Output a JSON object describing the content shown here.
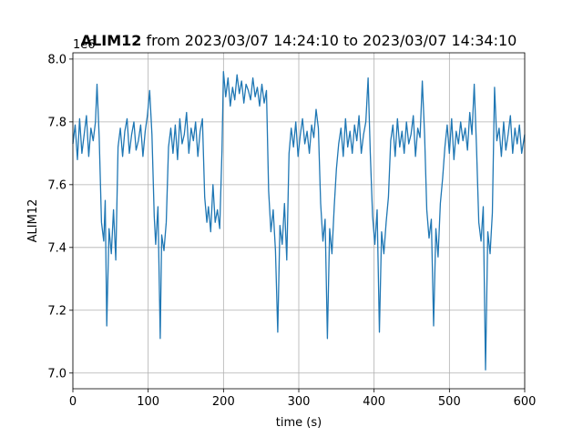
{
  "chart_data": {
    "type": "line",
    "title_bold": "ALIM12",
    "title_rest": " from 2023/03/07 14:24:10 to 2023/03/07 14:34:10",
    "xlabel": "time (s)",
    "ylabel": "ALIM12",
    "offset_label": "1e6",
    "xlim": [
      0,
      600
    ],
    "ylim": [
      6950000,
      8020000
    ],
    "xticks": [
      0,
      100,
      200,
      300,
      400,
      500,
      600
    ],
    "xtick_labels": [
      "0",
      "100",
      "200",
      "300",
      "400",
      "500",
      "600"
    ],
    "yticks": [
      7000000,
      7200000,
      7400000,
      7600000,
      7800000,
      8000000
    ],
    "ytick_labels": [
      "7.0",
      "7.2",
      "7.4",
      "7.6",
      "7.8",
      "8.0"
    ],
    "grid": true,
    "color": "#1f77b4",
    "series": [
      {
        "x": [
          0,
          3,
          6,
          9,
          12,
          15,
          18,
          21,
          24,
          27,
          30,
          32,
          35,
          38,
          41,
          43,
          45,
          48,
          51,
          54,
          57,
          60,
          63,
          66,
          69,
          72,
          75,
          78,
          81,
          84,
          87,
          90,
          93,
          96,
          99,
          102,
          105,
          108,
          110,
          113,
          116,
          118,
          121,
          124,
          127,
          130,
          133,
          136,
          139,
          142,
          145,
          148,
          151,
          154,
          157,
          160,
          163,
          166,
          169,
          172,
          175,
          178,
          180,
          183,
          186,
          189,
          192,
          195,
          198,
          200,
          203,
          206,
          209,
          212,
          215,
          218,
          221,
          224,
          227,
          230,
          233,
          236,
          239,
          242,
          245,
          248,
          251,
          254,
          257,
          260,
          263,
          266,
          269,
          272,
          275,
          278,
          281,
          284,
          287,
          290,
          293,
          296,
          299,
          302,
          305,
          308,
          311,
          314,
          317,
          320,
          323,
          326,
          329,
          332,
          335,
          338,
          341,
          344,
          347,
          350,
          353,
          356,
          359,
          362,
          365,
          368,
          371,
          374,
          377,
          380,
          383,
          386,
          389,
          392,
          395,
          398,
          401,
          404,
          407,
          410,
          413,
          416,
          419,
          422,
          425,
          428,
          431,
          434,
          437,
          440,
          443,
          446,
          449,
          452,
          455,
          458,
          461,
          464,
          467,
          470,
          473,
          476,
          479,
          482,
          485,
          488,
          491,
          494,
          497,
          500,
          503,
          506,
          509,
          512,
          515,
          518,
          521,
          524,
          527,
          530,
          533,
          536,
          539,
          542,
          545,
          548,
          551,
          554,
          557,
          560,
          563,
          566,
          569,
          572,
          575,
          578,
          581,
          584,
          587,
          590,
          593,
          596,
          600
        ],
        "y": [
          7730000,
          7790000,
          7680000,
          7810000,
          7700000,
          7760000,
          7820000,
          7690000,
          7780000,
          7740000,
          7800000,
          7920000,
          7750000,
          7480000,
          7420000,
          7550000,
          7150000,
          7460000,
          7380000,
          7520000,
          7360000,
          7720000,
          7780000,
          7690000,
          7770000,
          7810000,
          7700000,
          7760000,
          7800000,
          7710000,
          7740000,
          7790000,
          7690000,
          7770000,
          7820000,
          7900000,
          7760000,
          7500000,
          7410000,
          7530000,
          7110000,
          7440000,
          7390000,
          7480000,
          7720000,
          7780000,
          7700000,
          7790000,
          7680000,
          7810000,
          7730000,
          7760000,
          7830000,
          7700000,
          7780000,
          7740000,
          7800000,
          7690000,
          7770000,
          7810000,
          7560000,
          7480000,
          7530000,
          7450000,
          7600000,
          7480000,
          7520000,
          7460000,
          7710000,
          7960000,
          7880000,
          7940000,
          7850000,
          7910000,
          7870000,
          7950000,
          7890000,
          7930000,
          7860000,
          7920000,
          7900000,
          7870000,
          7940000,
          7880000,
          7910000,
          7850000,
          7920000,
          7860000,
          7900000,
          7580000,
          7450000,
          7520000,
          7390000,
          7130000,
          7470000,
          7410000,
          7540000,
          7360000,
          7700000,
          7780000,
          7720000,
          7800000,
          7690000,
          7760000,
          7810000,
          7730000,
          7770000,
          7700000,
          7790000,
          7750000,
          7840000,
          7780000,
          7540000,
          7420000,
          7490000,
          7110000,
          7460000,
          7380000,
          7530000,
          7650000,
          7730000,
          7780000,
          7690000,
          7810000,
          7720000,
          7770000,
          7700000,
          7790000,
          7740000,
          7820000,
          7700000,
          7760000,
          7800000,
          7940000,
          7700000,
          7500000,
          7410000,
          7520000,
          7130000,
          7450000,
          7380000,
          7480000,
          7560000,
          7740000,
          7790000,
          7690000,
          7810000,
          7720000,
          7770000,
          7700000,
          7800000,
          7730000,
          7760000,
          7820000,
          7690000,
          7780000,
          7750000,
          7930000,
          7760000,
          7520000,
          7430000,
          7490000,
          7150000,
          7460000,
          7370000,
          7540000,
          7620000,
          7720000,
          7790000,
          7700000,
          7810000,
          7680000,
          7770000,
          7730000,
          7800000,
          7740000,
          7780000,
          7710000,
          7830000,
          7760000,
          7920000,
          7720000,
          7480000,
          7420000,
          7530000,
          7010000,
          7450000,
          7380000,
          7510000,
          7910000,
          7740000,
          7780000,
          7690000,
          7800000,
          7710000,
          7760000,
          7820000,
          7700000,
          7780000,
          7730000,
          7790000,
          7700000,
          7760000
        ]
      }
    ]
  }
}
